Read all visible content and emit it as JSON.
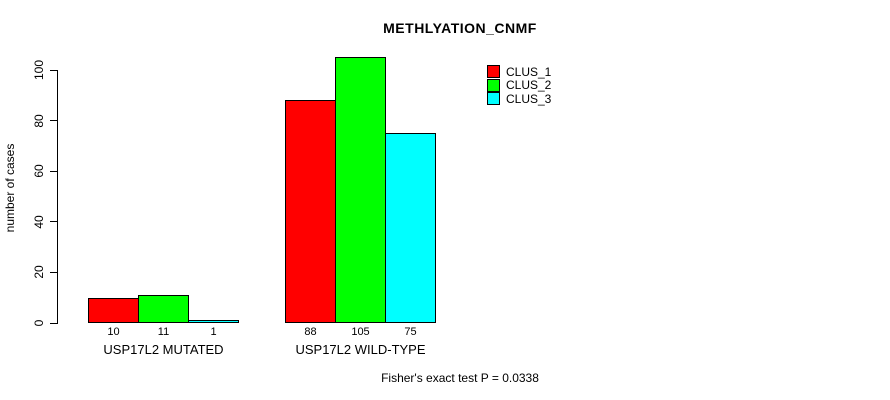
{
  "chart_data": {
    "type": "bar",
    "title": "METHLYATION_CNMF",
    "xlabel": "",
    "ylabel": "number of cases",
    "ylim": [
      0,
      100
    ],
    "yticks": [
      0,
      20,
      40,
      60,
      80,
      100
    ],
    "grid": false,
    "categories": [
      "USP17L2 MUTATED",
      "USP17L2 WILD-TYPE"
    ],
    "series": [
      {
        "name": "CLUS_1",
        "color": "#FF0000",
        "values": [
          10,
          88
        ]
      },
      {
        "name": "CLUS_2",
        "color": "#00FF00",
        "values": [
          11,
          105
        ]
      },
      {
        "name": "CLUS_3",
        "color": "#00FFFF",
        "values": [
          1,
          75
        ]
      }
    ],
    "bar_value_labels": [
      [
        10,
        11,
        1
      ],
      [
        88,
        105,
        75
      ]
    ],
    "legend_position": "top-right",
    "annotation": "Fisher's exact test P = 0.0338"
  }
}
